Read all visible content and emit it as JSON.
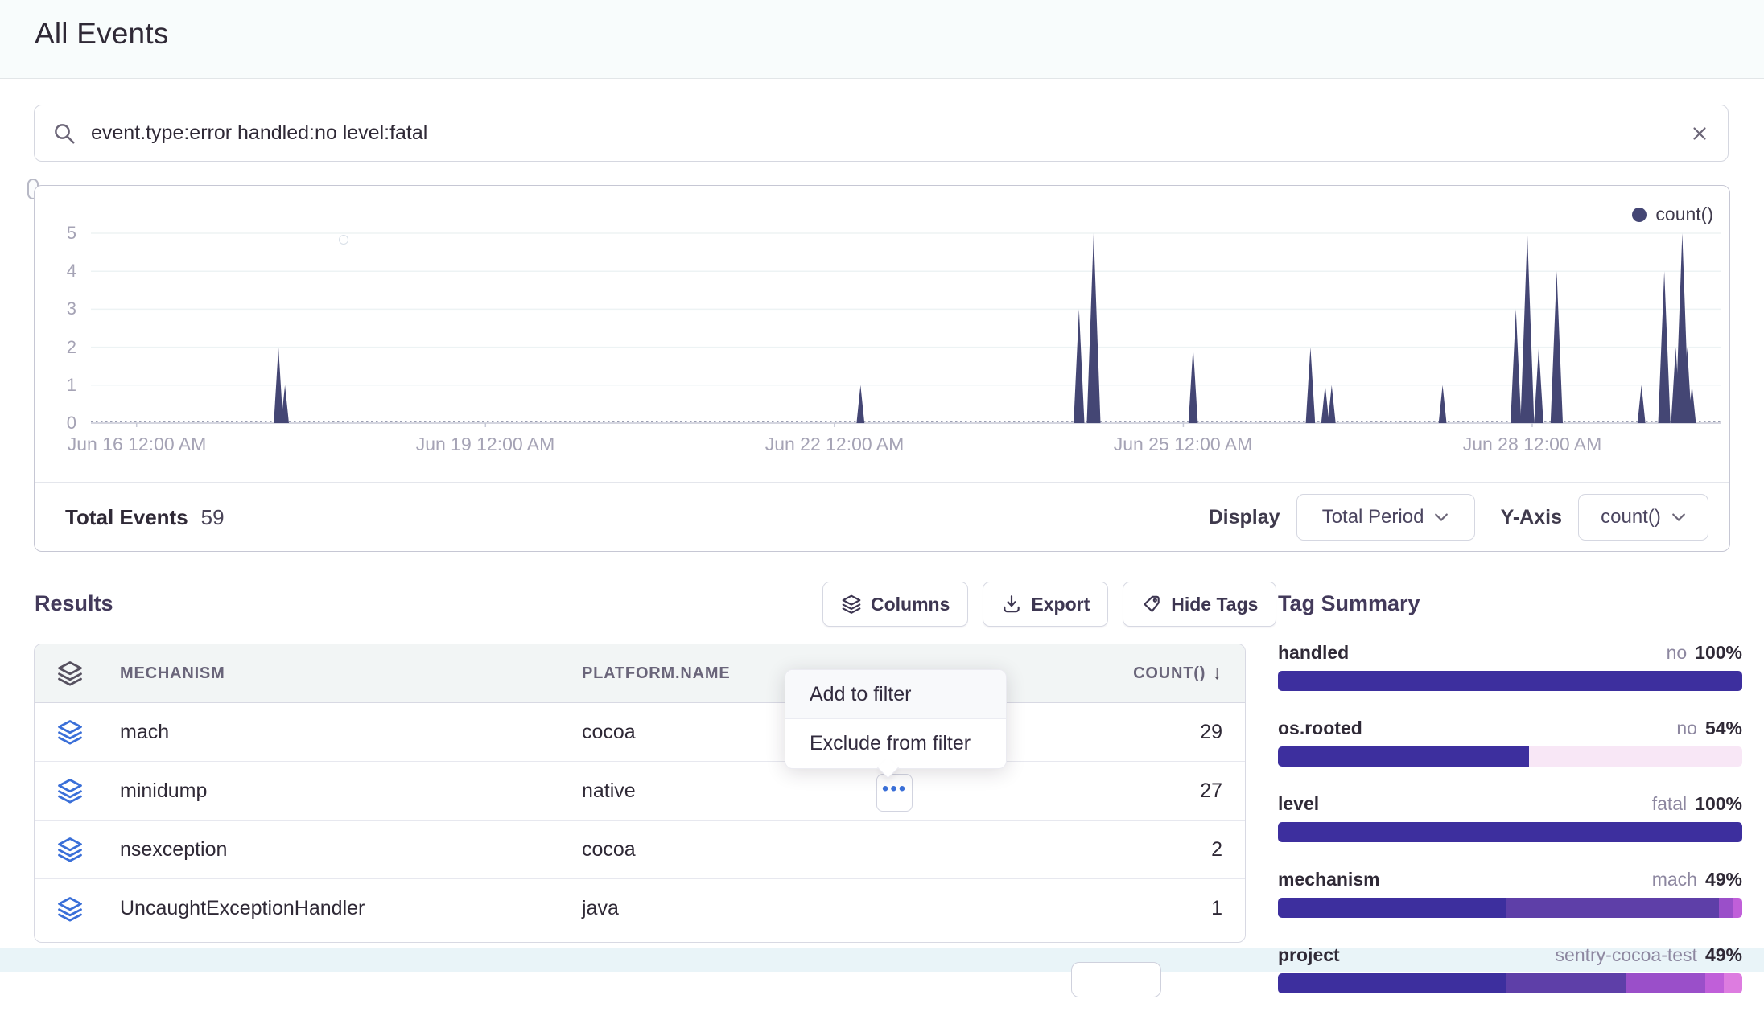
{
  "header": {
    "title": "All Events"
  },
  "search": {
    "query": "event.type:error handled:no level:fatal"
  },
  "chart_data": {
    "type": "area",
    "title": "",
    "series_name": "count()",
    "series_color": "#444674",
    "xlabel": "",
    "ylabel": "",
    "ylim": [
      0,
      5
    ],
    "y_ticks": [
      0,
      1,
      2,
      3,
      4,
      5
    ],
    "x_ticks": [
      {
        "label": "Jun 16 12:00 AM",
        "x": 0.028
      },
      {
        "label": "Jun 19 12:00 AM",
        "x": 0.242
      },
      {
        "label": "Jun 22 12:00 AM",
        "x": 0.456
      },
      {
        "label": "Jun 25 12:00 AM",
        "x": 0.67
      },
      {
        "label": "Jun 28 12:00 AM",
        "x": 0.884
      }
    ],
    "points": [
      {
        "time": "Jun 17 05:00",
        "value": 2,
        "x": 0.115
      },
      {
        "time": "Jun 17 06:00",
        "value": 1,
        "x": 0.119
      },
      {
        "time": "Jun 22 05:00",
        "value": 1,
        "x": 0.472
      },
      {
        "time": "Jun 24 02:00",
        "value": 3,
        "x": 0.606
      },
      {
        "time": "Jun 24 05:00",
        "value": 5,
        "x": 0.615
      },
      {
        "time": "Jun 25 02:00",
        "value": 2,
        "x": 0.676
      },
      {
        "time": "Jun 26 02:00",
        "value": 2,
        "x": 0.748
      },
      {
        "time": "Jun 26 05:00",
        "value": 1,
        "x": 0.757
      },
      {
        "time": "Jun 26 06:00",
        "value": 1,
        "x": 0.761
      },
      {
        "time": "Jun 27 05:00",
        "value": 1,
        "x": 0.829
      },
      {
        "time": "Jun 27 20:00",
        "value": 3,
        "x": 0.874
      },
      {
        "time": "Jun 27 23:00",
        "value": 5,
        "x": 0.881
      },
      {
        "time": "Jun 28 01:00",
        "value": 2,
        "x": 0.888
      },
      {
        "time": "Jun 28 05:00",
        "value": 4,
        "x": 0.899
      },
      {
        "time": "Jun 28 22:00",
        "value": 1,
        "x": 0.951
      },
      {
        "time": "Jun 29 03:00",
        "value": 4,
        "x": 0.965
      },
      {
        "time": "Jun 29 05:00",
        "value": 2,
        "x": 0.972
      },
      {
        "time": "Jun 29 06:00",
        "value": 5,
        "x": 0.976
      },
      {
        "time": "Jun 29 08:00",
        "value": 2,
        "x": 0.979
      },
      {
        "time": "Jun 29 09:00",
        "value": 1,
        "x": 0.982
      }
    ]
  },
  "chart_footer": {
    "total_label": "Total Events",
    "total_value": "59",
    "display_label": "Display",
    "display_value": "Total Period",
    "yaxis_label": "Y-Axis",
    "yaxis_value": "count()"
  },
  "results": {
    "heading": "Results",
    "toolbar": {
      "columns": "Columns",
      "export": "Export",
      "hide_tags": "Hide Tags"
    },
    "table": {
      "columns": {
        "mechanism": "MECHANISM",
        "platform": "PLATFORM.NAME",
        "count": "COUNT()"
      },
      "sort_arrow": "↓",
      "rows": [
        {
          "mechanism": "mach",
          "platform": "cocoa",
          "count": "29"
        },
        {
          "mechanism": "minidump",
          "platform": "native",
          "count": "27"
        },
        {
          "mechanism": "nsexception",
          "platform": "cocoa",
          "count": "2"
        },
        {
          "mechanism": "UncaughtExceptionHandler",
          "platform": "java",
          "count": "1"
        }
      ]
    },
    "more_button": "•••"
  },
  "context_menu": {
    "items": [
      "Add to filter",
      "Exclude from filter"
    ]
  },
  "tag_summary": {
    "heading": "Tag Summary",
    "palette": [
      "#3D2F9E",
      "#5E3FA8",
      "#9A4FC9",
      "#C05FD9",
      "#DD7CE0"
    ],
    "empty_color": "#F8E7F6",
    "tags": [
      {
        "name": "handled",
        "top_value": "no",
        "top_pct": "100%",
        "segments": [
          {
            "color": 0,
            "pct": 100
          }
        ]
      },
      {
        "name": "os.rooted",
        "top_value": "no",
        "top_pct": "54%",
        "segments": [
          {
            "color": 0,
            "pct": 54
          },
          {
            "color": "empty",
            "pct": 46
          }
        ]
      },
      {
        "name": "level",
        "top_value": "fatal",
        "top_pct": "100%",
        "segments": [
          {
            "color": 0,
            "pct": 100
          }
        ]
      },
      {
        "name": "mechanism",
        "top_value": "mach",
        "top_pct": "49%",
        "segments": [
          {
            "color": 0,
            "pct": 49
          },
          {
            "color": 1,
            "pct": 46
          },
          {
            "color": 2,
            "pct": 3
          },
          {
            "color": 3,
            "pct": 2
          }
        ]
      },
      {
        "name": "project",
        "top_value": "sentry-cocoa-test",
        "top_pct": "49%",
        "segments": [
          {
            "color": 0,
            "pct": 49
          },
          {
            "color": 1,
            "pct": 26
          },
          {
            "color": 2,
            "pct": 17
          },
          {
            "color": 3,
            "pct": 4
          },
          {
            "color": 4,
            "pct": 4
          }
        ]
      }
    ]
  }
}
